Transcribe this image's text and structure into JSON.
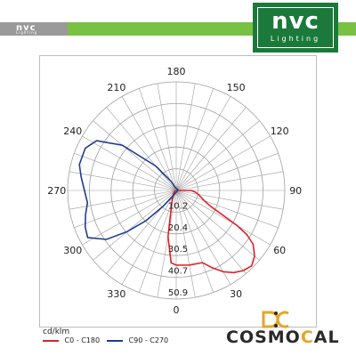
{
  "header": {
    "small_logo": "nvc",
    "small_logo_sub": "Lighting",
    "logo_word": "nvc",
    "logo_sub": "Lighting",
    "colors": {
      "green": "#79c143",
      "gray": "#9a9a9a",
      "logo_green": "#1b7a3b"
    }
  },
  "chart_data": {
    "type": "polar",
    "angle_labels": [
      "180",
      "150",
      "120",
      "90",
      "60",
      "30",
      "0",
      "330",
      "300",
      "270",
      "240",
      "210"
    ],
    "radial_labels": [
      "10.2",
      "20.4",
      "30.5",
      "40.7",
      "50.9"
    ],
    "radial_max": 50.9,
    "unit_label": "cd/klm",
    "series": [
      {
        "name": "C0 - C180",
        "color": "#e0202a",
        "points": [
          [
            0,
            35
          ],
          [
            10,
            35.5
          ],
          [
            20,
            36
          ],
          [
            25,
            40
          ],
          [
            30,
            44
          ],
          [
            35,
            47
          ],
          [
            40,
            49
          ],
          [
            45,
            50
          ],
          [
            50,
            48
          ],
          [
            55,
            44
          ],
          [
            58,
            39
          ],
          [
            60,
            33
          ],
          [
            62,
            25
          ],
          [
            65,
            18
          ],
          [
            70,
            14
          ],
          [
            75,
            12
          ],
          [
            80,
            10.5
          ],
          [
            85,
            9
          ],
          [
            90,
            7
          ],
          [
            180,
            0
          ],
          [
            270,
            0
          ],
          [
            280,
            0.5
          ],
          [
            300,
            1
          ],
          [
            320,
            2
          ],
          [
            330,
            3
          ],
          [
            340,
            6
          ],
          [
            350,
            22
          ],
          [
            356,
            34
          ],
          [
            0,
            35
          ]
        ]
      },
      {
        "name": "C90 - C270",
        "color": "#1f3e8e",
        "points": [
          [
            0,
            1
          ],
          [
            60,
            0.5
          ],
          [
            120,
            0.8
          ],
          [
            200,
            1.5
          ],
          [
            210,
            5
          ],
          [
            220,
            15
          ],
          [
            230,
            33
          ],
          [
            238,
            44
          ],
          [
            245,
            47
          ],
          [
            255,
            47
          ],
          [
            262,
            45
          ],
          [
            270,
            43
          ],
          [
            278,
            42
          ],
          [
            285,
            44
          ],
          [
            292,
            46
          ],
          [
            298,
            47
          ],
          [
            305,
            40
          ],
          [
            310,
            30
          ],
          [
            315,
            20
          ],
          [
            320,
            10
          ],
          [
            330,
            3
          ],
          [
            345,
            1
          ],
          [
            360,
            1
          ]
        ]
      }
    ],
    "legend_position": "bottom-left",
    "grid": true
  },
  "branding": {
    "cosmocal_left": "COSMO",
    "cosmocal_accent": "C",
    "cosmocal_right": "AL",
    "accent_color": "#e7a623"
  }
}
